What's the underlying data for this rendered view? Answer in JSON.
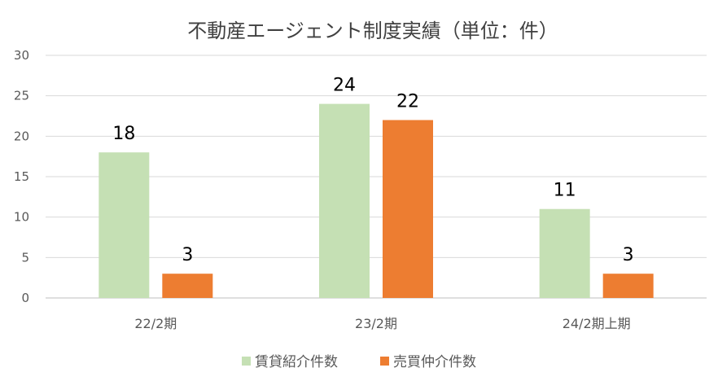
{
  "chart_data": {
    "type": "bar",
    "title": "不動産エージェント制度実績（単位：件）",
    "categories": [
      "22/2期",
      "23/2期",
      "24/2期上期"
    ],
    "series": [
      {
        "name": "賃貸紹介件数",
        "values": [
          18,
          24,
          11
        ],
        "color": "#c5e0b4"
      },
      {
        "name": "売買仲介件数",
        "values": [
          3,
          22,
          3
        ],
        "color": "#ed7d31"
      }
    ],
    "ylim": [
      0,
      30
    ],
    "yticks": [
      0,
      5,
      10,
      15,
      20,
      25,
      30
    ],
    "grid": true,
    "legend_position": "bottom"
  }
}
